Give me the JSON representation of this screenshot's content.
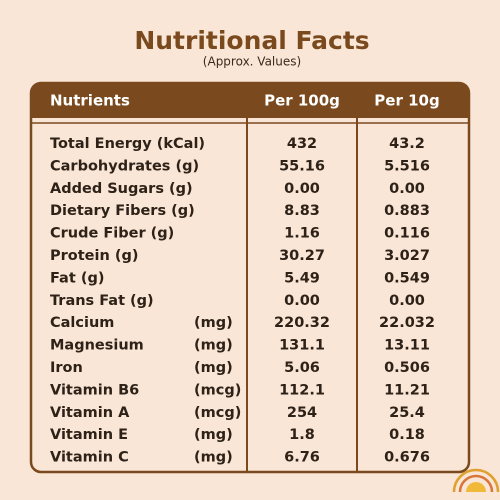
{
  "header": {
    "title": "Nutritional Facts",
    "subtitle": "(Approx. Values)"
  },
  "table": {
    "columns": [
      "Nutrients",
      "Per 100g",
      "Per 10g"
    ],
    "rows": [
      {
        "nutrient": "Total Energy (kCal)",
        "per_100g": "432",
        "per_10g": "43.2"
      },
      {
        "nutrient": "Carbohydrates (g)",
        "per_100g": "55.16",
        "per_10g": "5.516"
      },
      {
        "nutrient": "Added Sugars (g)",
        "per_100g": "0.00",
        "per_10g": "0.00"
      },
      {
        "nutrient": "Dietary Fibers (g)",
        "per_100g": "8.83",
        "per_10g": "0.883"
      },
      {
        "nutrient": "Crude Fiber (g)",
        "per_100g": "1.16",
        "per_10g": "0.116"
      },
      {
        "nutrient": "Protein (g)",
        "per_100g": "30.27",
        "per_10g": "3.027"
      },
      {
        "nutrient": "Fat (g)",
        "per_100g": "5.49",
        "per_10g": "0.549"
      },
      {
        "nutrient": "Trans Fat (g)",
        "per_100g": "0.00",
        "per_10g": "0.00"
      },
      {
        "nutrient": "Calcium",
        "unit": "(mg)",
        "per_100g": "220.32",
        "per_10g": "22.032"
      },
      {
        "nutrient": "Magnesium",
        "unit": "(mg)",
        "per_100g": "131.1",
        "per_10g": "13.11"
      },
      {
        "nutrient": "Iron",
        "unit": "(mg)",
        "per_100g": "5.06",
        "per_10g": "0.506"
      },
      {
        "nutrient": "Vitamin B6",
        "unit": "(mcg)",
        "per_100g": "112.1",
        "per_10g": "11.21"
      },
      {
        "nutrient": "Vitamin A",
        "unit": "(mcg)",
        "per_100g": "254",
        "per_10g": "25.4"
      },
      {
        "nutrient": "Vitamin E",
        "unit": "(mg)",
        "per_100g": "1.8",
        "per_10g": "0.18"
      },
      {
        "nutrient": "Vitamin C",
        "unit": "(mg)",
        "per_100g": "6.76",
        "per_10g": "0.676"
      }
    ]
  }
}
